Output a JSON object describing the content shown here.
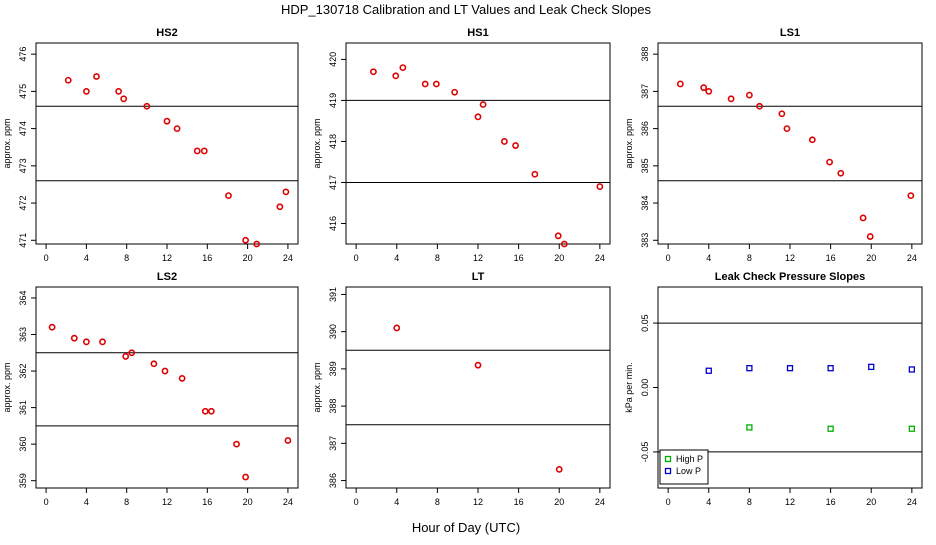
{
  "title": "HDP_130718  Calibration and LT Values and Leak Check Slopes",
  "xlabel": "Hour of Day (UTC)",
  "colors": {
    "point": "#e00000",
    "high_p": "#00b000",
    "low_p": "#0000d0",
    "line": "#000000"
  },
  "chart_data": [
    {
      "type": "scatter",
      "title": "HS2",
      "ylabel": "approx. ppm",
      "xlim": [
        -1,
        25
      ],
      "ylim": [
        470.9,
        476.3
      ],
      "xticks": [
        "0",
        "4",
        "8",
        "12",
        "16",
        "20",
        "24"
      ],
      "yticks": [
        "471",
        "472",
        "473",
        "474",
        "475",
        "476"
      ],
      "hlines": [
        474.6,
        472.6
      ],
      "x": [
        2.2,
        4,
        5,
        7.2,
        7.7,
        10,
        12,
        13,
        15,
        15.7,
        18.1,
        19.8,
        20.9,
        23.2,
        23.8
      ],
      "y": [
        475.3,
        475.0,
        475.4,
        475.0,
        474.8,
        474.6,
        474.2,
        474.0,
        473.4,
        473.4,
        472.2,
        471.0,
        470.9,
        471.9,
        472.3
      ]
    },
    {
      "type": "scatter",
      "title": "HS1",
      "ylabel": "approx. ppm",
      "xlim": [
        -1,
        25
      ],
      "ylim": [
        415.5,
        420.4
      ],
      "xticks": [
        "0",
        "4",
        "8",
        "12",
        "16",
        "20",
        "24"
      ],
      "yticks": [
        "416",
        "417",
        "418",
        "419",
        "420"
      ],
      "hlines": [
        419.0,
        417.0
      ],
      "x": [
        1.7,
        3.9,
        4.6,
        6.8,
        7.9,
        9.7,
        12,
        12.5,
        14.6,
        15.7,
        17.6,
        19.9,
        20.5,
        24
      ],
      "y": [
        419.7,
        419.6,
        419.8,
        419.4,
        419.4,
        419.2,
        418.6,
        418.9,
        418.0,
        417.9,
        417.2,
        415.7,
        415.5,
        416.9
      ]
    },
    {
      "type": "scatter",
      "title": "LS1",
      "ylabel": "approx. ppm",
      "xlim": [
        -1,
        25
      ],
      "ylim": [
        382.9,
        388.3
      ],
      "xticks": [
        "0",
        "4",
        "8",
        "12",
        "16",
        "20",
        "24"
      ],
      "yticks": [
        "383",
        "384",
        "385",
        "386",
        "387",
        "388"
      ],
      "hlines": [
        386.6,
        384.6
      ],
      "x": [
        1.2,
        3.5,
        4,
        6.2,
        8,
        9,
        11.2,
        11.7,
        14.2,
        15.9,
        17,
        19.2,
        19.9,
        23.9
      ],
      "y": [
        387.2,
        387.1,
        387.0,
        386.8,
        386.9,
        386.6,
        386.4,
        386.0,
        385.7,
        385.1,
        384.8,
        383.6,
        383.1,
        384.2
      ]
    },
    {
      "type": "scatter",
      "title": "LS2",
      "ylabel": "approx. ppm",
      "xlim": [
        -1,
        25
      ],
      "ylim": [
        358.8,
        364.3
      ],
      "xticks": [
        "0",
        "4",
        "8",
        "12",
        "16",
        "20",
        "24"
      ],
      "yticks": [
        "359",
        "360",
        "361",
        "362",
        "363",
        "364"
      ],
      "hlines": [
        362.5,
        360.5
      ],
      "x": [
        0.6,
        2.8,
        4,
        5.6,
        7.9,
        8.5,
        10.7,
        11.8,
        13.5,
        15.8,
        16.4,
        18.9,
        19.8,
        24
      ],
      "y": [
        363.2,
        362.9,
        362.8,
        362.8,
        362.4,
        362.5,
        362.2,
        362.0,
        361.8,
        360.9,
        360.9,
        360.0,
        359.1,
        360.1
      ]
    },
    {
      "type": "scatter",
      "title": "LT",
      "ylabel": "approx. ppm",
      "xlim": [
        -1,
        25
      ],
      "ylim": [
        385.8,
        391.2
      ],
      "xticks": [
        "0",
        "4",
        "8",
        "12",
        "16",
        "20",
        "24"
      ],
      "yticks": [
        "386",
        "387",
        "388",
        "389",
        "390",
        "391"
      ],
      "hlines": [
        389.5,
        387.5
      ],
      "x": [
        4,
        12,
        20
      ],
      "y": [
        390.1,
        389.1,
        386.3
      ]
    },
    {
      "type": "scatter",
      "title": "Leak Check Pressure Slopes",
      "ylabel": "kPa per min.",
      "xlim": [
        -1,
        25
      ],
      "ylim": [
        -0.078,
        0.078
      ],
      "xticks": [
        "0",
        "4",
        "8",
        "12",
        "16",
        "20",
        "24"
      ],
      "yticks": [
        "-0.05",
        "0.00",
        "0.05"
      ],
      "hlines": [
        0.05,
        -0.05
      ],
      "legend": {
        "entries": [
          "High P",
          "Low P"
        ],
        "position": "bottom-left"
      },
      "series": [
        {
          "name": "High P",
          "x": [
            8,
            16,
            24
          ],
          "y": [
            -0.031,
            -0.032,
            -0.032
          ]
        },
        {
          "name": "Low P",
          "x": [
            4,
            8,
            12,
            16,
            20,
            24
          ],
          "y": [
            0.013,
            0.015,
            0.015,
            0.015,
            0.016,
            0.014
          ]
        }
      ]
    }
  ]
}
